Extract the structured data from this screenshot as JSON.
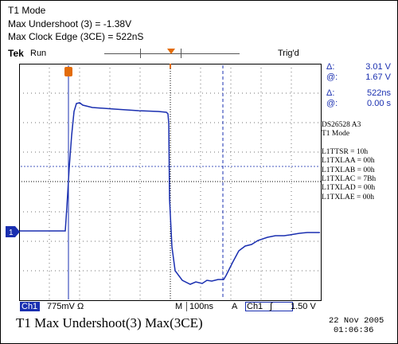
{
  "caption": {
    "line1": "T1 Mode",
    "line2": "Max Undershoot (3) = -1.38V",
    "line3": "Max Clock Edge (3CE) = 522nS"
  },
  "scope": {
    "brand": "Tek",
    "run_state": "Run",
    "trigger_state": "Trig'd",
    "channel_marker": "1",
    "trace_color": "#1a2fb0",
    "trigger_color": "#e36c09"
  },
  "readout": {
    "voltage_delta_symbol": "Δ:",
    "voltage_delta": "3.01 V",
    "voltage_at_symbol": "@:",
    "voltage_at": "1.67 V",
    "time_delta_symbol": "Δ:",
    "time_delta": "522ns",
    "time_at_symbol": "@:",
    "time_at": "0.00 s"
  },
  "info_block": {
    "device": "DS26528  A3",
    "mode": "T1 Mode",
    "registers": [
      "L1TTSR = 10h",
      "L1TXLAA = 00h",
      "L1TXLAB = 00h",
      "L1TXLAC = 7Bh",
      "L1TXLAD = 00h",
      "L1TXLAE = 00h"
    ]
  },
  "status_bar": {
    "channel": "Ch1",
    "volts_per_div": "775mV",
    "ohm_symbol": "Ω",
    "timebase_prefix": "M",
    "timebase": "100ns",
    "acq_prefix": "A",
    "trigger_channel": "Ch1",
    "trigger_slope_symbol": "∫",
    "trigger_level": "1.50 V"
  },
  "bottom_title": "T1 Max Undershoot(3)  Max(3CE)",
  "date": "22 Nov 2005",
  "time": "01:06:36"
}
